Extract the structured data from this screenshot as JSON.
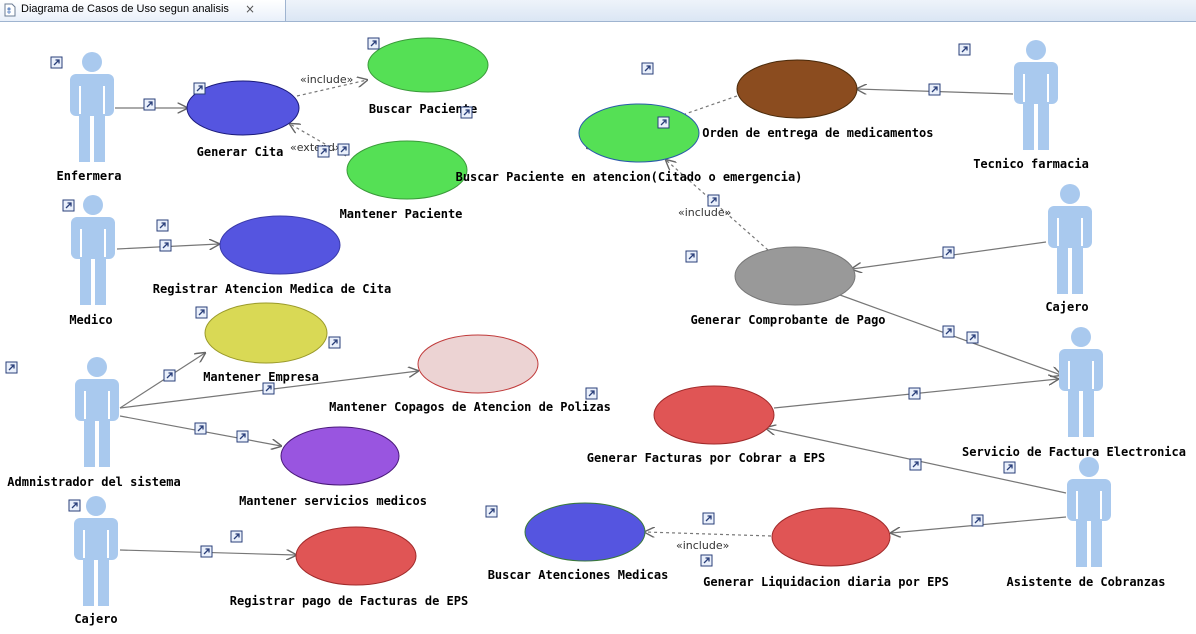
{
  "tab": {
    "title": "Diagrama de Casos de Uso segun analisis",
    "close_label": "×"
  },
  "actors": [
    {
      "id": "enfermera",
      "name": "Enfermera"
    },
    {
      "id": "medico",
      "name": "Medico"
    },
    {
      "id": "admin",
      "name": "Admnistrador del sistema"
    },
    {
      "id": "cajero1",
      "name": "Cajero"
    },
    {
      "id": "tecnico",
      "name": "Tecnico farmacia"
    },
    {
      "id": "cajero2",
      "name": "Cajero"
    },
    {
      "id": "sfe",
      "name": "Servicio de Factura Electronica"
    },
    {
      "id": "asistente",
      "name": "Asistente de Cobranzas"
    }
  ],
  "use_cases": [
    {
      "id": "gen_cita",
      "name": "Generar Cita",
      "color": "#5555e0"
    },
    {
      "id": "buscar_pac",
      "name": "Buscar Paciente",
      "color": "#55e055"
    },
    {
      "id": "mant_pac",
      "name": "Mantener Paciente",
      "color": "#55e055"
    },
    {
      "id": "reg_aten",
      "name": "Registrar Atencion Medica de Cita",
      "color": "#5555e0"
    },
    {
      "id": "mant_emp",
      "name": "Mantener Empresa",
      "color": "#d9d955"
    },
    {
      "id": "mant_cop",
      "name": "Mantener Copagos de Atencion de Polizas",
      "color": "#ecd3d3"
    },
    {
      "id": "mant_serv",
      "name": "Mantener servicios  medicos",
      "color": "#9955e0"
    },
    {
      "id": "reg_pago",
      "name": "Registrar pago de Facturas de EPS",
      "color": "#e05555"
    },
    {
      "id": "gen_orden",
      "name": "Generar Orden de entrega de medicamentos",
      "color": "#8b4c1f"
    },
    {
      "id": "buscar_aten",
      "name": "Buscar Paciente  en atencion(Citado o emergencia)",
      "color": "#55e055"
    },
    {
      "id": "gen_comp",
      "name": "Generar Comprobante de Pago",
      "color": "#999999"
    },
    {
      "id": "gen_fact",
      "name": "Generar Facturas por Cobrar a EPS",
      "color": "#e05555"
    },
    {
      "id": "buscar_atm",
      "name": "Buscar Atenciones Medicas",
      "color": "#5555e0"
    },
    {
      "id": "gen_liq",
      "name": "Generar Liquidacion diaria  por EPS",
      "color": "#e05555"
    }
  ],
  "relations": [
    {
      "from": "enfermera",
      "to": "gen_cita",
      "kind": "association",
      "label": ""
    },
    {
      "from": "gen_cita",
      "to": "buscar_pac",
      "kind": "include",
      "label": "«include»"
    },
    {
      "from": "mant_pac",
      "to": "gen_cita",
      "kind": "extend",
      "label": "«extend»"
    },
    {
      "from": "medico",
      "to": "reg_aten",
      "kind": "association",
      "label": ""
    },
    {
      "from": "admin",
      "to": "mant_emp",
      "kind": "association",
      "label": ""
    },
    {
      "from": "admin",
      "to": "mant_cop",
      "kind": "association",
      "label": ""
    },
    {
      "from": "admin",
      "to": "mant_serv",
      "kind": "association",
      "label": ""
    },
    {
      "from": "cajero1",
      "to": "reg_pago",
      "kind": "association",
      "label": ""
    },
    {
      "from": "tecnico",
      "to": "gen_orden",
      "kind": "association",
      "label": ""
    },
    {
      "from": "gen_orden",
      "to": "buscar_aten",
      "kind": "include",
      "label": "«include»"
    },
    {
      "from": "gen_comp",
      "to": "buscar_aten",
      "kind": "include",
      "label": "«include»"
    },
    {
      "from": "cajero2",
      "to": "gen_comp",
      "kind": "association",
      "label": ""
    },
    {
      "from": "gen_comp",
      "to": "sfe",
      "kind": "association",
      "label": ""
    },
    {
      "from": "gen_fact",
      "to": "sfe",
      "kind": "association",
      "label": ""
    },
    {
      "from": "asistente",
      "to": "gen_fact",
      "kind": "association",
      "label": ""
    },
    {
      "from": "asistente",
      "to": "gen_liq",
      "kind": "association",
      "label": ""
    },
    {
      "from": "gen_liq",
      "to": "buscar_atm",
      "kind": "include",
      "label": "«include»"
    }
  ]
}
